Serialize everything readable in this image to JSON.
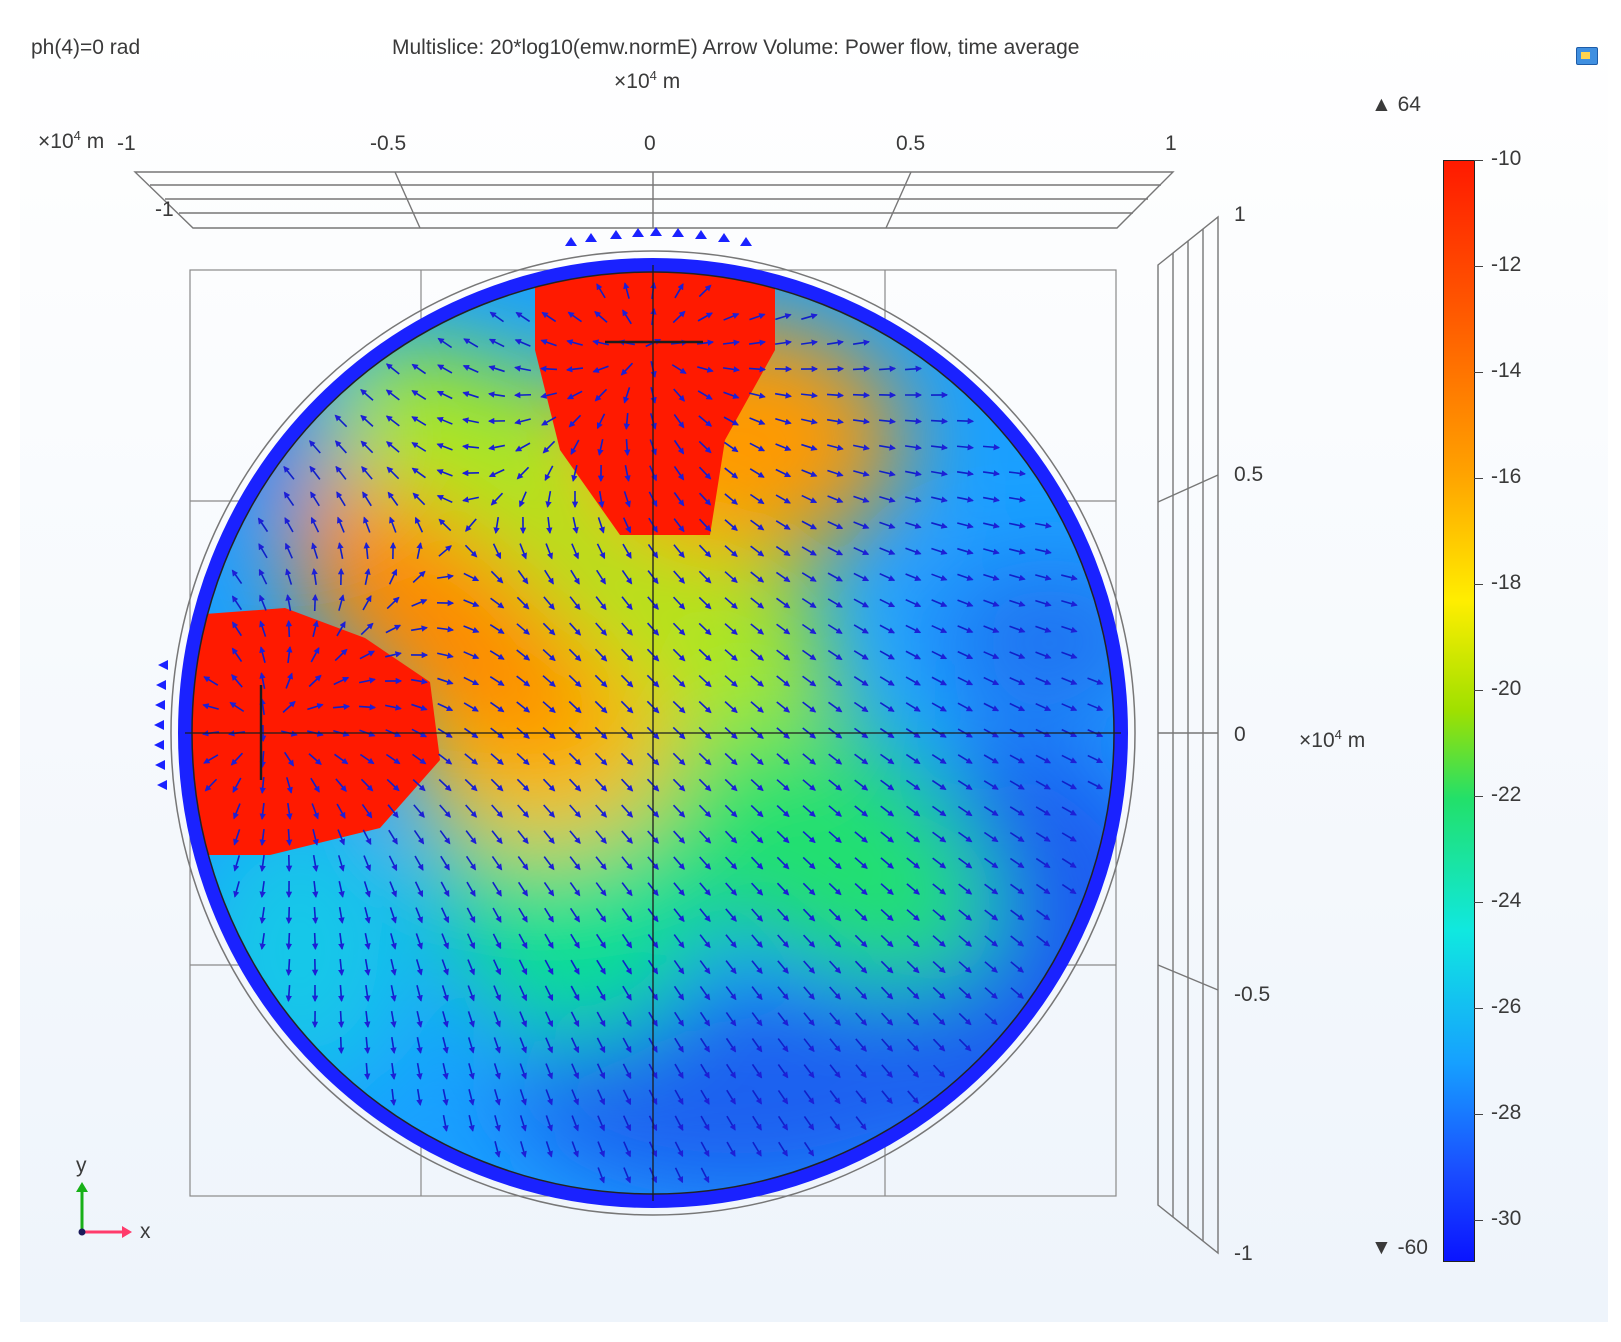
{
  "header": {
    "phase_label": "ph(4)=0 rad",
    "plot_title": "Multislice: 20*log10(emw.normE)  Arrow Volume: Power flow, time average"
  },
  "axes": {
    "x_unit_prefix": "×10",
    "x_unit_exp": "4",
    "x_unit_suffix": " m",
    "y_unit_prefix": "×10",
    "y_unit_exp": "4",
    "y_unit_suffix": " m",
    "left_unit_prefix": "×10",
    "left_unit_exp": "4",
    "left_unit_suffix": " m",
    "x_ticks": [
      "-1",
      "-0.5",
      "0",
      "0.5",
      "1"
    ],
    "x_back_tick": "-1",
    "y_ticks": [
      "1",
      "0.5",
      "0",
      "-0.5",
      "-1"
    ],
    "triad_x": "x",
    "triad_y": "y"
  },
  "colorbar": {
    "max_label": "▲ 64",
    "min_label": "▼ -60",
    "ticks": [
      "-10",
      "-12",
      "-14",
      "-16",
      "-18",
      "-20",
      "-22",
      "-24",
      "-26",
      "-28",
      "-30"
    ]
  },
  "colors": {
    "field_high": "#ff1a00",
    "field_low": "#0a14ff",
    "arrow": "#1020c8"
  },
  "icons": {
    "corner": "view-icon"
  }
}
